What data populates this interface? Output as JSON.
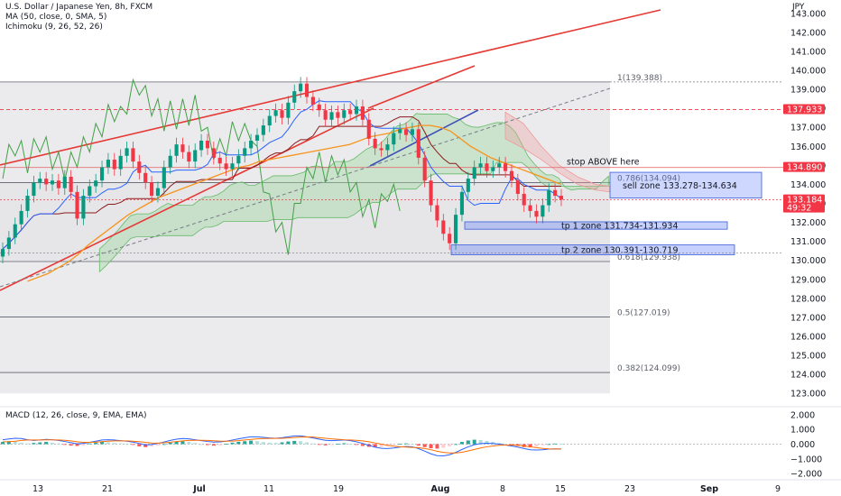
{
  "header": {
    "title": "U.S. Dollar / Japanese Yen, 8h, FXCM",
    "indicators": [
      "MA (50, close, 0, SMA, 5)",
      "Ichimoku (9, 26, 52, 26)"
    ],
    "macd_label": "MACD (12, 26, close, 9, EMA, EMA)"
  },
  "chart_data": {
    "type": "line",
    "currency": "JPY",
    "y_range": [
      122.3,
      143.7
    ],
    "y_ticks": [
      "143.000",
      "142.000",
      "141.000",
      "140.000",
      "139.000",
      "138.000",
      "137.000",
      "136.000",
      "135.000",
      "134.000",
      "133.000",
      "132.000",
      "131.000",
      "130.000",
      "129.000",
      "128.000",
      "127.000",
      "126.000",
      "125.000",
      "124.000",
      "123.000"
    ],
    "y_tick_values": [
      143,
      142,
      141,
      140,
      139,
      138,
      137,
      136,
      135,
      134,
      133,
      132,
      131,
      130,
      129,
      128,
      127,
      126,
      125,
      124,
      123
    ],
    "x_labels": [
      "13",
      "21",
      "Jul",
      "11",
      "19",
      "Aug",
      "8",
      "15",
      "23",
      "Sep",
      "9"
    ],
    "fib_levels": [
      {
        "label": "1(139.388)",
        "value": 139.388
      },
      {
        "label": "0.786(134.094)",
        "value": 134.094
      },
      {
        "label": "0.618(129.938)",
        "value": 129.938
      },
      {
        "label": "0.5(127.019)",
        "value": 127.019
      },
      {
        "label": "0.382(124.099)",
        "value": 124.099
      }
    ],
    "zones": [
      {
        "label": "sell zone 133.278-134.634",
        "low": 133.278,
        "high": 134.634
      },
      {
        "label": "tp 1 zone 131.734-131.934",
        "low": 131.734,
        "high": 131.934
      },
      {
        "label": "tp 2 zone 130.391-130.719",
        "low": 130.391,
        "high": 130.719
      }
    ],
    "stop": {
      "label": "stop ABOVE here",
      "value": 134.89
    },
    "price_badges": [
      {
        "value": 137.933,
        "text": "137.933",
        "color": "#f23645"
      },
      {
        "value": 134.89,
        "text": "134.890",
        "color": "#f23645"
      },
      {
        "value": 133.184,
        "text": "133.184",
        "sub": "49:32",
        "color": "#f23645"
      }
    ],
    "close_price": [
      130.6,
      131.2,
      131.9,
      132.6,
      133.4,
      134.1,
      134.3,
      134.0,
      134.2,
      133.8,
      134.4,
      133.6,
      132.2,
      133.4,
      133.9,
      134.2,
      134.9,
      135.3,
      134.8,
      135.5,
      135.9,
      135.2,
      134.6,
      134.1,
      133.4,
      133.8,
      134.9,
      135.5,
      136.1,
      135.7,
      135.2,
      135.8,
      136.3,
      135.9,
      135.4,
      135.1,
      134.8,
      135.1,
      135.5,
      135.9,
      136.3,
      136.6,
      137.1,
      137.6,
      137.9,
      137.5,
      138.3,
      138.9,
      139.3,
      138.6,
      138.2,
      137.9,
      137.4,
      137.8,
      137.5,
      137.9,
      137.7,
      138.1,
      137.4,
      136.4,
      135.9,
      135.8,
      136.1,
      136.7,
      136.9,
      136.6,
      136.9,
      135.4,
      134.2,
      132.9,
      132.1,
      131.4,
      130.9,
      132.4,
      133.6,
      134.3,
      134.9,
      135.1,
      134.7,
      134.9,
      135.1,
      134.7,
      134.2,
      133.5,
      132.9,
      132.6,
      132.3,
      132.9,
      133.7,
      133.4,
      133.2
    ],
    "ma50": [
      128.9,
      129.1,
      129.3,
      129.6,
      129.9,
      130.3,
      130.8,
      131.2,
      131.6,
      132.0,
      132.4,
      132.7,
      133.0,
      133.3,
      133.5,
      133.7,
      133.9,
      134.1,
      134.3,
      134.5,
      134.7,
      134.9,
      135.0,
      135.2,
      135.3,
      135.4,
      135.5,
      135.6,
      135.7,
      135.8,
      135.9,
      136.0,
      136.1,
      136.3,
      136.5,
      136.6,
      136.7,
      136.9,
      137.0,
      137.1,
      137.1,
      137.0,
      136.8,
      136.4,
      136.0,
      135.7,
      135.4,
      135.2,
      135.0,
      134.8,
      134.6,
      134.4,
      134.2,
      134.0
    ],
    "ma50_x_start": 4,
    "macd_range": [
      -2.3,
      2.3
    ],
    "macd_ticks": [
      "2.000",
      "1.000",
      "0.000",
      "−1.000",
      "−2.000"
    ],
    "macd_tick_values": [
      2,
      1,
      0,
      -1,
      -2
    ],
    "macd_hist": [
      0.15,
      0.2,
      0.18,
      0.1,
      0.05,
      0.08,
      0.12,
      0.15,
      0.1,
      0.05,
      -0.05,
      -0.1,
      -0.12,
      -0.08,
      0.05,
      0.1,
      0.15,
      0.12,
      0.08,
      0.05,
      0.0,
      -0.05,
      -0.15,
      -0.2,
      -0.15,
      -0.1,
      0.0,
      0.1,
      0.18,
      0.2,
      0.15,
      0.08,
      0.0,
      -0.06,
      -0.1,
      -0.08,
      0.02,
      0.1,
      0.16,
      0.2,
      0.24,
      0.2,
      0.14,
      0.1,
      0.08,
      0.12,
      0.18,
      0.22,
      0.2,
      0.12,
      0.05,
      -0.02,
      -0.08,
      -0.05,
      0.02,
      0.06,
      0.02,
      -0.05,
      -0.12,
      -0.18,
      -0.22,
      -0.2,
      -0.14,
      -0.06,
      0.02,
      0.05,
      0.0,
      -0.1,
      -0.2,
      -0.28,
      -0.3,
      -0.25,
      -0.15,
      0.0,
      0.15,
      0.25,
      0.3,
      0.28,
      0.22,
      0.15,
      0.08,
      0.0,
      -0.05,
      -0.12,
      -0.2,
      -0.22,
      -0.16,
      -0.08,
      0.0,
      0.04,
      0.02
    ],
    "macd_line": [
      0.3,
      0.35,
      0.4,
      0.38,
      0.3,
      0.25,
      0.28,
      0.32,
      0.3,
      0.25,
      0.18,
      0.1,
      0.02,
      0.05,
      0.12,
      0.2,
      0.28,
      0.3,
      0.28,
      0.24,
      0.2,
      0.14,
      0.05,
      -0.05,
      -0.02,
      0.05,
      0.15,
      0.25,
      0.34,
      0.38,
      0.36,
      0.3,
      0.24,
      0.18,
      0.14,
      0.15,
      0.2,
      0.28,
      0.36,
      0.44,
      0.5,
      0.5,
      0.46,
      0.42,
      0.4,
      0.44,
      0.5,
      0.56,
      0.56,
      0.5,
      0.42,
      0.34,
      0.26,
      0.24,
      0.26,
      0.28,
      0.24,
      0.16,
      0.05,
      -0.08,
      -0.2,
      -0.28,
      -0.3,
      -0.26,
      -0.2,
      -0.16,
      -0.18,
      -0.3,
      -0.48,
      -0.66,
      -0.78,
      -0.8,
      -0.72,
      -0.56,
      -0.36,
      -0.18,
      -0.04,
      0.04,
      0.06,
      0.04,
      0.0,
      -0.06,
      -0.12,
      -0.2,
      -0.3,
      -0.38,
      -0.4,
      -0.38,
      -0.34,
      -0.32,
      -0.33
    ],
    "macd_signal": [
      0.15,
      0.17,
      0.2,
      0.25,
      0.28,
      0.28,
      0.28,
      0.29,
      0.29,
      0.28,
      0.26,
      0.22,
      0.16,
      0.12,
      0.12,
      0.14,
      0.17,
      0.2,
      0.22,
      0.22,
      0.22,
      0.2,
      0.17,
      0.12,
      0.08,
      0.07,
      0.09,
      0.13,
      0.18,
      0.22,
      0.25,
      0.26,
      0.26,
      0.25,
      0.23,
      0.21,
      0.2,
      0.21,
      0.24,
      0.28,
      0.32,
      0.36,
      0.38,
      0.39,
      0.39,
      0.4,
      0.42,
      0.45,
      0.48,
      0.49,
      0.48,
      0.44,
      0.4,
      0.36,
      0.33,
      0.3,
      0.28,
      0.26,
      0.22,
      0.16,
      0.08,
      0.0,
      -0.08,
      -0.14,
      -0.18,
      -0.2,
      -0.22,
      -0.24,
      -0.3,
      -0.38,
      -0.48,
      -0.56,
      -0.6,
      -0.6,
      -0.55,
      -0.46,
      -0.36,
      -0.26,
      -0.18,
      -0.12,
      -0.08,
      -0.06,
      -0.06,
      -0.08,
      -0.12,
      -0.18,
      -0.24,
      -0.29,
      -0.32,
      -0.33,
      -0.33
    ]
  }
}
